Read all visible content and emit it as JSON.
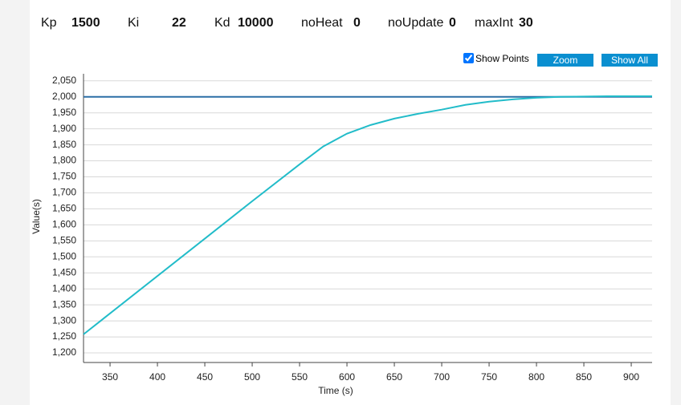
{
  "params": [
    {
      "label": "Kp",
      "value": "1500"
    },
    {
      "label": "Ki",
      "value": "22"
    },
    {
      "label": "Kd",
      "value": "10000"
    },
    {
      "label": "noHeat",
      "value": "0"
    },
    {
      "label": "noUpdate",
      "value": "0"
    },
    {
      "label": "maxInt",
      "value": "30"
    }
  ],
  "controls": {
    "show_points": "Show Points",
    "show_points_checked": true,
    "zoom": "Zoom",
    "show_all": "Show All"
  },
  "chart_data": {
    "type": "line",
    "x_label": "Time (s)",
    "y_label": "Value(s)",
    "x": [
      322,
      450,
      500,
      550,
      575,
      600,
      625,
      650,
      675,
      700,
      725,
      750,
      775,
      800,
      825,
      850,
      875,
      900,
      922
    ],
    "series": [
      {
        "color": "#2b6ea6",
        "values": [
          2000,
          2000,
          2000,
          2000,
          2000,
          2000,
          2000,
          2000,
          2000,
          2000,
          2000,
          2000,
          2000,
          2000,
          2000,
          2000,
          2000,
          2000,
          2000
        ]
      },
      {
        "color": "#22bcc9",
        "values": [
          1258,
          1557,
          1674,
          1789,
          1845,
          1885,
          1912,
          1932,
          1947,
          1960,
          1975,
          1985,
          1992,
          1997,
          2000,
          2001,
          2002,
          2002,
          2002
        ]
      }
    ],
    "xlim": [
      322,
      922
    ],
    "ylim": [
      1170,
      2072
    ],
    "xticks": [
      350,
      400,
      450,
      500,
      550,
      600,
      650,
      700,
      750,
      800,
      850,
      900
    ],
    "yticks": [
      {
        "value": 1200,
        "label": "1,200"
      },
      {
        "value": 1250,
        "label": "1,250"
      },
      {
        "value": 1300,
        "label": "1,300"
      },
      {
        "value": 1350,
        "label": "1,350"
      },
      {
        "value": 1400,
        "label": "1,400"
      },
      {
        "value": 1450,
        "label": "1,450"
      },
      {
        "value": 1500,
        "label": "1,500"
      },
      {
        "value": 1550,
        "label": "1,550"
      },
      {
        "value": 1600,
        "label": "1,600"
      },
      {
        "value": 1650,
        "label": "1,650"
      },
      {
        "value": 1700,
        "label": "1,700"
      },
      {
        "value": 1750,
        "label": "1,750"
      },
      {
        "value": 1800,
        "label": "1,800"
      },
      {
        "value": 1850,
        "label": "1,850"
      },
      {
        "value": 1900,
        "label": "1,900"
      },
      {
        "value": 1950,
        "label": "1,950"
      },
      {
        "value": 2000,
        "label": "2,000"
      },
      {
        "value": 2050,
        "label": "2,050"
      }
    ],
    "grid": true
  }
}
